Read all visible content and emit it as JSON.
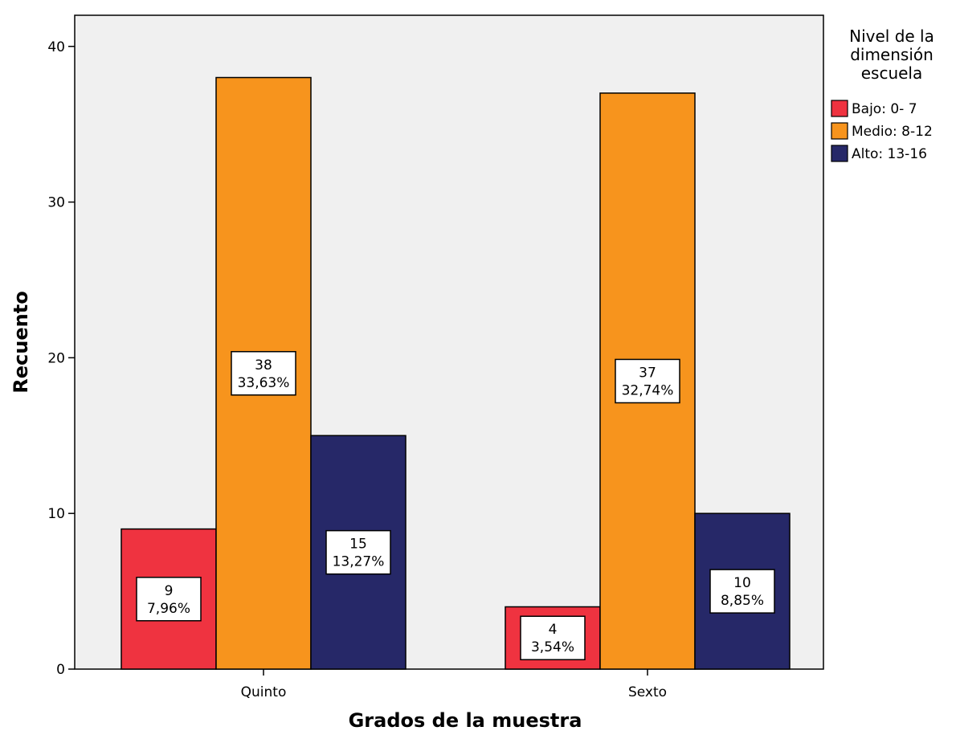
{
  "chart_data": {
    "type": "bar",
    "xlabel": "Grados de la muestra",
    "ylabel": "Recuento",
    "categories": [
      "Quinto",
      "Sexto"
    ],
    "series": [
      {
        "name": "Bajo: 0- 7",
        "color": "#ef3340",
        "values": [
          9,
          4
        ],
        "labels": [
          "7,96%",
          "3,54%"
        ]
      },
      {
        "name": "Medio: 8-12",
        "color": "#f7941d",
        "values": [
          38,
          37
        ],
        "labels": [
          "33,63%",
          "32,74%"
        ]
      },
      {
        "name": "Alto: 13-16",
        "color": "#262868",
        "values": [
          15,
          10
        ],
        "labels": [
          "13,27%",
          "8,85%"
        ]
      }
    ],
    "ylim": [
      0,
      40
    ],
    "yticks": [
      0,
      10,
      20,
      30,
      40
    ],
    "legend": {
      "title": [
        "Nivel de la",
        "dimensión",
        "escuela"
      ],
      "position": "right"
    },
    "grid": false,
    "plot_background": "#f0f0f0"
  }
}
